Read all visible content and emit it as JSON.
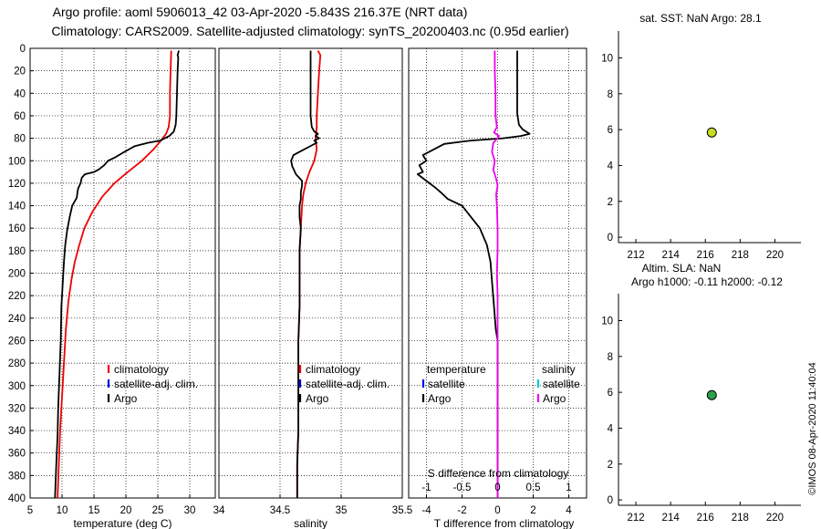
{
  "header": {
    "title_line1": "Argo profile: aoml 5906013_42 03-Apr-2020 -5.843S 216.37E (NRT data)",
    "title_line2": "Climatology: CARS2009. Satellite-adjusted climatology: synTS_20200403.nc (0.95d earlier)",
    "watermark": "©IMOS 08-Apr-2020 11:40:04"
  },
  "colors": {
    "climatology": "#ee0000",
    "satellite": "#0000dd",
    "argo": "#000000",
    "sdiff": "#ee00ee",
    "sat_s": "#00cccc"
  },
  "chart_data": [
    {
      "type": "line",
      "id": "temperature",
      "xlabel": "temperature (deg C)",
      "xlim": [
        5,
        34
      ],
      "xticks": [
        5,
        10,
        15,
        20,
        25,
        30
      ],
      "x_tick_labels": [
        "5",
        "10",
        "15",
        "20",
        "25",
        "30"
      ],
      "ylim": [
        0,
        400
      ],
      "yticks": [
        0,
        20,
        40,
        60,
        80,
        100,
        120,
        140,
        160,
        180,
        200,
        220,
        240,
        260,
        280,
        300,
        320,
        340,
        360,
        380,
        400
      ],
      "y_tick_labels": [
        "0",
        "20",
        "40",
        "60",
        "80",
        "100",
        "120",
        "140",
        "160",
        "180",
        "200",
        "220",
        "240",
        "260",
        "280",
        "300",
        "320",
        "340",
        "360",
        "380",
        "400"
      ],
      "legend": [
        "climatology",
        "satellite-adj. clim.",
        "Argo"
      ],
      "series": [
        {
          "name": "climatology",
          "color": "#ee0000",
          "points": [
            [
              27.1,
              2
            ],
            [
              27.0,
              20
            ],
            [
              26.9,
              40
            ],
            [
              26.9,
              60
            ],
            [
              26.7,
              70
            ],
            [
              26.3,
              76
            ],
            [
              25.5,
              82
            ],
            [
              24.3,
              90
            ],
            [
              22.5,
              100
            ],
            [
              20.3,
              110
            ],
            [
              18.2,
              120
            ],
            [
              16.3,
              132
            ],
            [
              14.8,
              145
            ],
            [
              13.5,
              160
            ],
            [
              12.7,
              175
            ],
            [
              12.0,
              190
            ],
            [
              11.5,
              205
            ],
            [
              11.0,
              225
            ],
            [
              10.6,
              250
            ],
            [
              10.3,
              280
            ],
            [
              10.0,
              310
            ],
            [
              9.7,
              340
            ],
            [
              9.5,
              370
            ],
            [
              9.3,
              400
            ]
          ]
        },
        {
          "name": "Argo",
          "color": "#000000",
          "points": [
            [
              28.3,
              2
            ],
            [
              28.1,
              6
            ],
            [
              28.2,
              8
            ],
            [
              28.1,
              20
            ],
            [
              28.0,
              40
            ],
            [
              27.9,
              60
            ],
            [
              27.8,
              68
            ],
            [
              27.5,
              74
            ],
            [
              26.8,
              78
            ],
            [
              25.4,
              82
            ],
            [
              23.5,
              84
            ],
            [
              21.4,
              87
            ],
            [
              19.8,
              92
            ],
            [
              18.3,
              97
            ],
            [
              17.2,
              100
            ],
            [
              16.6,
              104
            ],
            [
              15.7,
              108
            ],
            [
              15.0,
              110
            ],
            [
              13.6,
              112
            ],
            [
              13.1,
              115
            ],
            [
              12.9,
              120
            ],
            [
              12.5,
              125
            ],
            [
              12.3,
              133
            ],
            [
              11.6,
              140
            ],
            [
              11.2,
              150
            ],
            [
              10.8,
              162
            ],
            [
              10.5,
              175
            ],
            [
              10.3,
              190
            ],
            [
              10.1,
              210
            ],
            [
              9.9,
              230
            ],
            [
              9.8,
              260
            ],
            [
              9.6,
              290
            ],
            [
              9.4,
              320
            ],
            [
              9.3,
              345
            ],
            [
              9.1,
              370
            ],
            [
              8.9,
              400
            ]
          ]
        }
      ]
    },
    {
      "type": "line",
      "id": "salinity",
      "xlabel": "salinity",
      "xlim": [
        34.0,
        35.5
      ],
      "xticks": [
        34.0,
        34.5,
        35.0,
        35.5
      ],
      "x_tick_labels": [
        "34",
        "34.5",
        "35",
        "35.5"
      ],
      "ylim": [
        0,
        400
      ],
      "legend": [
        "climatology",
        "satellite-adj. clim.",
        "Argo"
      ],
      "series": [
        {
          "name": "climatology",
          "color": "#ee0000",
          "points": [
            [
              34.81,
              2
            ],
            [
              34.83,
              6
            ],
            [
              34.82,
              20
            ],
            [
              34.81,
              40
            ],
            [
              34.8,
              60
            ],
            [
              34.8,
              70
            ],
            [
              34.79,
              80
            ],
            [
              34.8,
              90
            ],
            [
              34.78,
              100
            ],
            [
              34.74,
              110
            ],
            [
              34.71,
              120
            ],
            [
              34.69,
              130
            ],
            [
              34.68,
              140
            ],
            [
              34.67,
              160
            ],
            [
              34.66,
              180
            ],
            [
              34.66,
              200
            ],
            [
              34.66,
              230
            ],
            [
              34.65,
              260
            ],
            [
              34.65,
              300
            ],
            [
              34.65,
              340
            ],
            [
              34.64,
              370
            ],
            [
              34.64,
              400
            ]
          ]
        },
        {
          "name": "Argo",
          "color": "#000000",
          "points": [
            [
              34.75,
              2
            ],
            [
              34.75,
              20
            ],
            [
              34.75,
              40
            ],
            [
              34.75,
              60
            ],
            [
              34.76,
              70
            ],
            [
              34.78,
              74
            ],
            [
              34.81,
              76
            ],
            [
              34.79,
              78
            ],
            [
              34.82,
              80
            ],
            [
              34.78,
              82
            ],
            [
              34.8,
              84
            ],
            [
              34.73,
              88
            ],
            [
              34.66,
              92
            ],
            [
              34.61,
              95
            ],
            [
              34.59,
              100
            ],
            [
              34.6,
              105
            ],
            [
              34.63,
              112
            ],
            [
              34.68,
              118
            ],
            [
              34.68,
              122
            ],
            [
              34.67,
              128
            ],
            [
              34.67,
              134
            ],
            [
              34.66,
              140
            ],
            [
              34.66,
              150
            ],
            [
              34.67,
              160
            ],
            [
              34.66,
              180
            ],
            [
              34.66,
              200
            ],
            [
              34.66,
              230
            ],
            [
              34.65,
              260
            ],
            [
              34.65,
              300
            ],
            [
              34.65,
              340
            ],
            [
              34.64,
              370
            ],
            [
              34.64,
              400
            ]
          ]
        }
      ]
    },
    {
      "type": "line",
      "id": "differences",
      "xlabel": "T difference from climatology",
      "xlim": [
        -5,
        5
      ],
      "xticks": [
        -4,
        -2,
        0,
        2,
        4
      ],
      "x_tick_labels": [
        "-4",
        "-2",
        "0",
        "2",
        "4"
      ],
      "secondary_xlabel": "S difference from climatology",
      "secondary_xlim": [
        -1.25,
        1.25
      ],
      "secondary_xticks": [
        -1,
        -0.5,
        0,
        0.5,
        1
      ],
      "secondary_tick_labels": [
        "-1",
        "-0.5",
        "0",
        "0.5",
        "1"
      ],
      "ylim": [
        0,
        400
      ],
      "legend_left_title": "temperature",
      "legend_left": [
        "satellite",
        "Argo"
      ],
      "legend_right_title": "salinity",
      "legend_right": [
        "satellite",
        "Argo"
      ],
      "series": [
        {
          "name": "T difference (Argo)",
          "color": "#000000",
          "axis": "T",
          "points": [
            [
              1.1,
              2
            ],
            [
              1.1,
              20
            ],
            [
              1.1,
              40
            ],
            [
              1.1,
              58
            ],
            [
              1.2,
              68
            ],
            [
              1.4,
              72
            ],
            [
              1.8,
              76
            ],
            [
              1.3,
              78
            ],
            [
              0.3,
              80
            ],
            [
              -1.5,
              82
            ],
            [
              -3.0,
              85
            ],
            [
              -3.6,
              90
            ],
            [
              -4.2,
              95
            ],
            [
              -4.0,
              100
            ],
            [
              -4.4,
              104
            ],
            [
              -4.2,
              110
            ],
            [
              -4.5,
              112
            ],
            [
              -4.0,
              118
            ],
            [
              -3.5,
              124
            ],
            [
              -3.2,
              128
            ],
            [
              -2.8,
              134
            ],
            [
              -2.0,
              140
            ],
            [
              -1.5,
              150
            ],
            [
              -1.0,
              160
            ],
            [
              -0.6,
              175
            ],
            [
              -0.4,
              190
            ],
            [
              -0.3,
              210
            ],
            [
              -0.2,
              230
            ],
            [
              -0.1,
              250
            ],
            [
              0,
              260
            ],
            [
              0,
              300
            ],
            [
              0,
              340
            ],
            [
              0,
              400
            ]
          ]
        },
        {
          "name": "S difference (Argo)",
          "color": "#ee00ee",
          "axis": "S",
          "points": [
            [
              -0.04,
              2
            ],
            [
              -0.04,
              20
            ],
            [
              -0.03,
              40
            ],
            [
              -0.03,
              60
            ],
            [
              -0.01,
              70
            ],
            [
              -0.05,
              75
            ],
            [
              0.02,
              78
            ],
            [
              0.0,
              80
            ],
            [
              -0.06,
              84
            ],
            [
              -0.08,
              92
            ],
            [
              -0.04,
              100
            ],
            [
              -0.06,
              108
            ],
            [
              -0.02,
              116
            ],
            [
              0.0,
              122
            ],
            [
              -0.02,
              130
            ],
            [
              -0.01,
              140
            ],
            [
              0.0,
              160
            ],
            [
              0.0,
              180
            ],
            [
              -0.01,
              200
            ],
            [
              0.0,
              220
            ],
            [
              0.0,
              250
            ],
            [
              0.0,
              300
            ],
            [
              0.0,
              350
            ],
            [
              0.0,
              400
            ]
          ]
        }
      ]
    },
    {
      "type": "scatter",
      "id": "sst_panel",
      "title": "sat. SST: NaN Argo: 28.1",
      "xlim": [
        211,
        221.5
      ],
      "xticks": [
        212,
        214,
        216,
        218,
        220
      ],
      "x_tick_labels": [
        "212",
        "214",
        "216",
        "218",
        "220"
      ],
      "ylim": [
        -0.3,
        11.5
      ],
      "yticks": [
        0,
        2,
        4,
        6,
        8,
        10
      ],
      "y_tick_labels": [
        "0",
        "2",
        "4",
        "6",
        "8",
        "10"
      ],
      "points": [
        {
          "x": 216.37,
          "y": 5.843,
          "color": "#c8dc20"
        }
      ]
    },
    {
      "type": "scatter",
      "id": "sla_panel",
      "title_line1": "Altim. SLA: NaN",
      "title_line2": "Argo h1000: -0.11 h2000: -0.12",
      "xlim": [
        211,
        221.5
      ],
      "xticks": [
        212,
        214,
        216,
        218,
        220
      ],
      "x_tick_labels": [
        "212",
        "214",
        "216",
        "218",
        "220"
      ],
      "ylim": [
        -0.3,
        11.5
      ],
      "yticks": [
        0,
        2,
        4,
        6,
        8,
        10
      ],
      "y_tick_labels": [
        "0",
        "2",
        "4",
        "6",
        "8",
        "10"
      ],
      "points": [
        {
          "x": 216.37,
          "y": 5.843,
          "color": "#2aa048"
        }
      ]
    }
  ]
}
